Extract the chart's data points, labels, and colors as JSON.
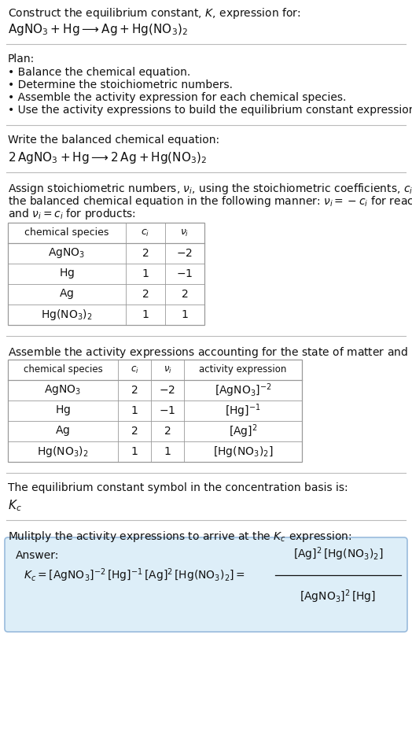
{
  "title_line1": "Construct the equilibrium constant, $K$, expression for:",
  "title_line2": "$\\mathrm{AgNO_3 + Hg} \\longrightarrow \\mathrm{Ag + Hg(NO_3)_2}$",
  "plan_header": "Plan:",
  "plan_bullets": [
    "Balance the chemical equation.",
    "Determine the stoichiometric numbers.",
    "Assemble the activity expression for each chemical species.",
    "Use the activity expressions to build the equilibrium constant expression."
  ],
  "balanced_header": "Write the balanced chemical equation:",
  "balanced_eq": "$\\mathrm{2\\,AgNO_3 + Hg} \\longrightarrow \\mathrm{2\\,Ag + Hg(NO_3)_2}$",
  "stoich_intro_lines": [
    "Assign stoichiometric numbers, $\\nu_i$, using the stoichiometric coefficients, $c_i$, from",
    "the balanced chemical equation in the following manner: $\\nu_i = -c_i$ for reactants",
    "and $\\nu_i = c_i$ for products:"
  ],
  "table1_headers": [
    "chemical species",
    "$c_i$",
    "$\\nu_i$"
  ],
  "table1_rows": [
    [
      "$\\mathrm{AgNO_3}$",
      "2",
      "$-2$"
    ],
    [
      "$\\mathrm{Hg}$",
      "1",
      "$-1$"
    ],
    [
      "$\\mathrm{Ag}$",
      "2",
      "2"
    ],
    [
      "$\\mathrm{Hg(NO_3)_2}$",
      "1",
      "1"
    ]
  ],
  "activity_intro": "Assemble the activity expressions accounting for the state of matter and $\\nu_i$:",
  "table2_headers": [
    "chemical species",
    "$c_i$",
    "$\\nu_i$",
    "activity expression"
  ],
  "table2_rows": [
    [
      "$\\mathrm{AgNO_3}$",
      "2",
      "$-2$",
      "$[\\mathrm{AgNO_3}]^{-2}$"
    ],
    [
      "$\\mathrm{Hg}$",
      "1",
      "$-1$",
      "$[\\mathrm{Hg}]^{-1}$"
    ],
    [
      "$\\mathrm{Ag}$",
      "2",
      "2",
      "$[\\mathrm{Ag}]^{2}$"
    ],
    [
      "$\\mathrm{Hg(NO_3)_2}$",
      "1",
      "1",
      "$[\\mathrm{Hg(NO_3)_2}]$"
    ]
  ],
  "kc_text": "The equilibrium constant symbol in the concentration basis is:",
  "kc_symbol": "$K_c$",
  "multiply_text": "Mulitply the activity expressions to arrive at the $K_c$ expression:",
  "answer_label": "Answer:",
  "bg_color": "#ffffff",
  "table_border_color": "#999999",
  "section_line_color": "#bbbbbb",
  "answer_box_color": "#ddeef8",
  "answer_box_edge": "#99bbdd",
  "text_color": "#111111",
  "font_size": 10.0
}
